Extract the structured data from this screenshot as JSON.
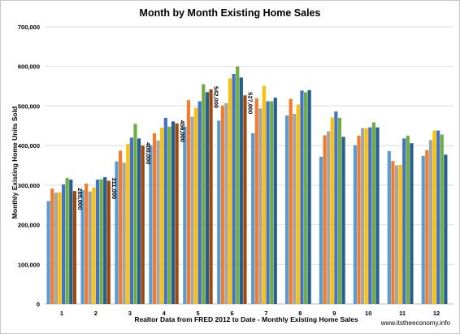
{
  "chart_data": {
    "type": "bar",
    "title": "Month by Month Existing Home Sales",
    "ylabel": "Monthly Existing Home Units Sold",
    "xlabel": "Realtor Data from FRED 2012 to Date - Monthly Existing Home Sales",
    "credit": "www.itstheeconomy.info",
    "ylim": [
      0,
      700000
    ],
    "yticks": [
      {
        "value": 0,
        "label": "0"
      },
      {
        "value": 100000,
        "label": "100,000"
      },
      {
        "value": 200000,
        "label": "200,000"
      },
      {
        "value": 300000,
        "label": "300,000"
      },
      {
        "value": 400000,
        "label": "400,000"
      },
      {
        "value": 500000,
        "label": "500,000"
      },
      {
        "value": 600000,
        "label": "600,000"
      },
      {
        "value": 700000,
        "label": "700,000"
      }
    ],
    "grid": true,
    "categories": [
      "1",
      "2",
      "3",
      "4",
      "5",
      "6",
      "7",
      "8",
      "9",
      "10",
      "11",
      "12"
    ],
    "series": [
      {
        "color": "#5b9bd5",
        "values": [
          260000,
          287000,
          360000,
          400000,
          448000,
          463000,
          431000,
          476000,
          372000,
          401000,
          386000,
          374000
        ]
      },
      {
        "color": "#ed7d31",
        "values": [
          291000,
          304000,
          387000,
          431000,
          515000,
          501000,
          519000,
          518000,
          426000,
          425000,
          361000,
          388000
        ]
      },
      {
        "color": "#a5a5a5",
        "values": [
          281000,
          284000,
          357000,
          413000,
          473000,
          507000,
          494000,
          480000,
          436000,
          444000,
          350000,
          414000
        ]
      },
      {
        "color": "#ffc000",
        "values": [
          282000,
          294000,
          404000,
          445000,
          495000,
          570000,
          551000,
          504000,
          471000,
          444000,
          351000,
          438000
        ]
      },
      {
        "color": "#4472c4",
        "values": [
          302000,
          314000,
          420000,
          470000,
          512000,
          581000,
          512000,
          539000,
          486000,
          446000,
          418000,
          438000
        ]
      },
      {
        "color": "#70ad47",
        "values": [
          318000,
          315000,
          455000,
          448000,
          555000,
          600000,
          512000,
          535000,
          470000,
          459000,
          425000,
          428000
        ]
      },
      {
        "color": "#255e91",
        "values": [
          314000,
          320000,
          418000,
          461000,
          535000,
          572000,
          521000,
          540000,
          422000,
          446000,
          406000,
          377000
        ]
      },
      {
        "color": "#9e480e",
        "values": [
          285000,
          311000,
          400000,
          456000,
          542000,
          527000,
          null,
          null,
          null,
          null,
          null,
          null
        ]
      }
    ],
    "annotations": [
      {
        "category": "1",
        "label": "285,000"
      },
      {
        "category": "2",
        "label": "311,000"
      },
      {
        "category": "3",
        "label": "400,000"
      },
      {
        "category": "4",
        "label": "456,000"
      },
      {
        "category": "5",
        "label": "542,000"
      },
      {
        "category": "6",
        "label": "527,000"
      }
    ]
  }
}
